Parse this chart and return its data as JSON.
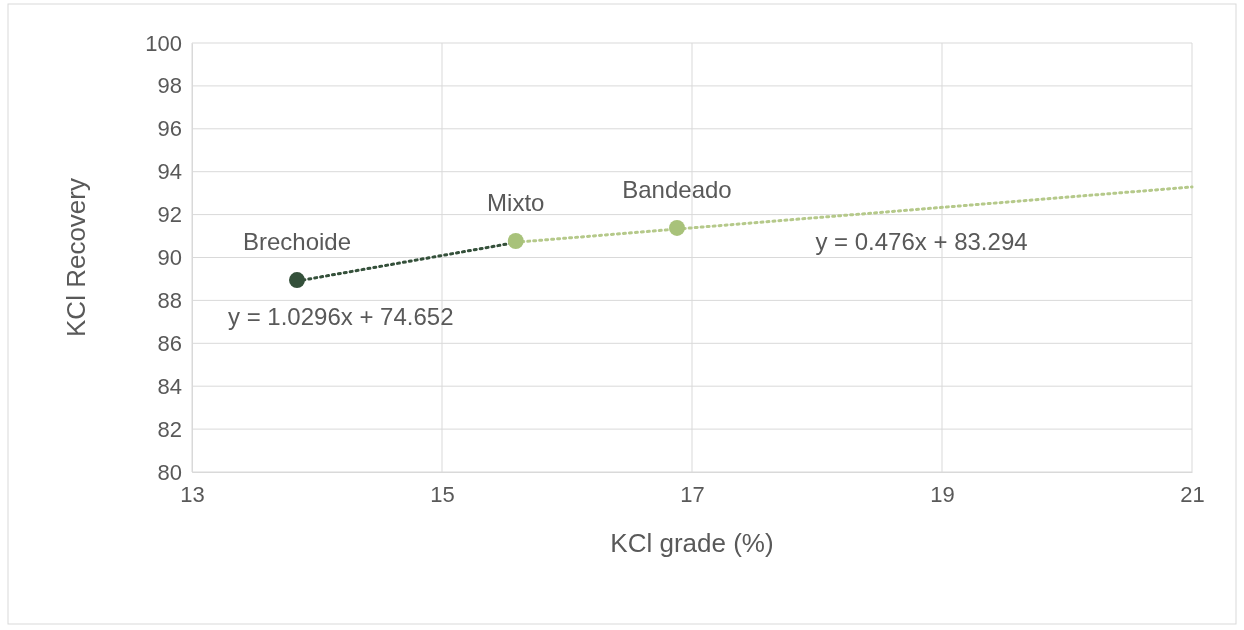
{
  "chart_data": {
    "type": "scatter",
    "xlabel": "KCl grade (%)",
    "ylabel": "KCl Recovery",
    "xlim": [
      13,
      21
    ],
    "xticks": [
      13,
      15,
      17,
      19,
      21
    ],
    "ylim": [
      80,
      100
    ],
    "yticks": [
      80,
      82,
      84,
      86,
      88,
      90,
      92,
      94,
      96,
      98,
      100
    ],
    "grid": true,
    "marker": "circle",
    "series": [
      {
        "name": "Brechoide",
        "color": "#34503a",
        "x": [
          13.84
        ],
        "values": [
          88.95
        ]
      },
      {
        "name": "Mixto",
        "color": "#a8c27a",
        "x": [
          15.59
        ],
        "values": [
          90.77
        ]
      },
      {
        "name": "Bandeado",
        "color": "#a8c27a",
        "x": [
          16.88
        ],
        "values": [
          91.38
        ]
      },
      {
        "type": "line",
        "color": "#34503a",
        "line_style": "dotted",
        "marker": "none",
        "x": [
          13.84,
          15.59
        ],
        "values": [
          88.9,
          90.7
        ]
      },
      {
        "type": "line",
        "color": "#b5c98a",
        "line_style": "dotted",
        "marker": "none",
        "x": [
          15.59,
          21
        ],
        "values": [
          90.71,
          93.29
        ]
      }
    ],
    "annotations": [
      "y = 1.0296x + 74.652",
      "y = 0.476x + 83.294"
    ]
  }
}
